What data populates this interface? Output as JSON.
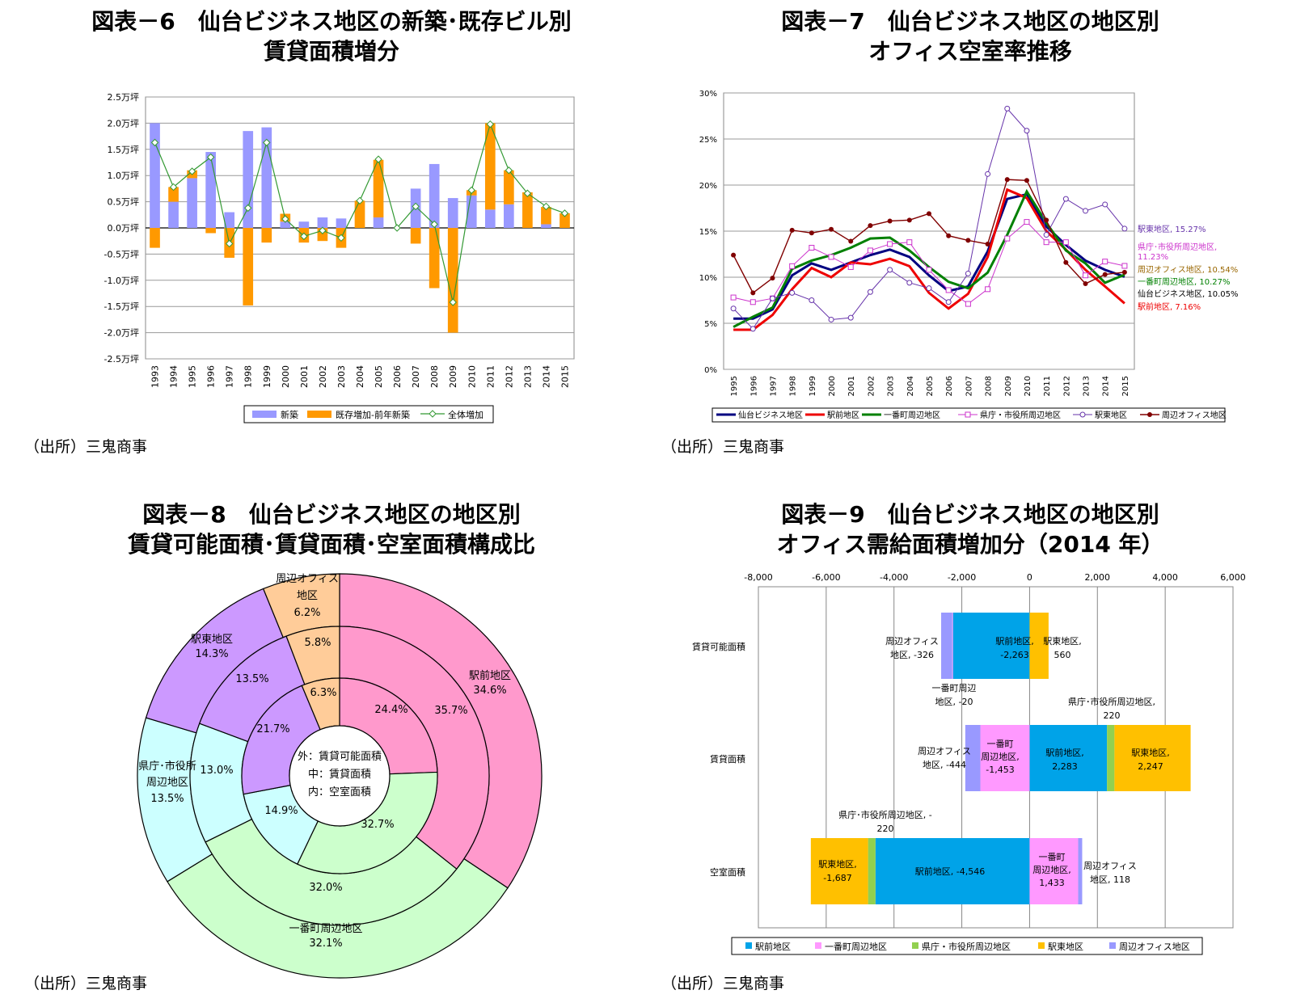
{
  "chart_data": [
    {
      "type": "bar",
      "title_line1": "図表－6　仙台ビジネス地区の新築･既存ビル別",
      "title_line2": "賃貸面積増分",
      "source": "（出所）三鬼商事",
      "categories": [
        "1993",
        "1994",
        "1995",
        "1996",
        "1997",
        "1998",
        "1999",
        "2000",
        "2001",
        "2002",
        "2003",
        "2004",
        "2005",
        "2006",
        "2007",
        "2008",
        "2009",
        "2010",
        "2011",
        "2012",
        "2013",
        "2014",
        "2015"
      ],
      "ylim": [
        -2.5,
        2.5
      ],
      "yticks": [
        "2.5万坪",
        "2.0万坪",
        "1.5万坪",
        "1.0万坪",
        "0.5万坪",
        "0.0万坪",
        "-0.5万坪",
        "-1.0万坪",
        "-1.5万坪",
        "-2.0万坪",
        "-2.5万坪"
      ],
      "ytick_values": [
        2.5,
        2.0,
        1.5,
        1.0,
        0.5,
        0.0,
        -0.5,
        -1.0,
        -1.5,
        -2.0,
        -2.5
      ],
      "series": [
        {
          "name": "新築",
          "color": "#9999ff",
          "values": [
            2.0,
            0.5,
            0.95,
            1.45,
            0.3,
            1.85,
            1.92,
            0.12,
            0.12,
            0.2,
            0.18,
            0.0,
            0.2,
            0.0,
            0.75,
            1.22,
            0.57,
            0.62,
            0.35,
            0.45,
            0.0,
            0.07,
            0.0
          ]
        },
        {
          "name": "既存増加-前年新築",
          "color": "#ff9900",
          "values": [
            -0.38,
            0.28,
            0.15,
            -0.1,
            -0.57,
            -1.48,
            -0.28,
            0.15,
            -0.28,
            -0.25,
            -0.38,
            0.52,
            1.1,
            0.0,
            -0.3,
            -1.15,
            -2.0,
            0.1,
            1.65,
            0.65,
            0.68,
            0.33,
            0.28
          ]
        },
        {
          "name": "全体増加",
          "color": "#339933",
          "values": [
            1.63,
            0.78,
            1.08,
            1.35,
            -0.3,
            0.38,
            1.63,
            0.17,
            -0.16,
            -0.05,
            -0.19,
            0.52,
            1.31,
            0.0,
            0.41,
            0.07,
            -1.42,
            0.72,
            1.98,
            1.1,
            0.66,
            0.41,
            0.28
          ]
        }
      ]
    },
    {
      "type": "line",
      "title_line1": "図表－7　仙台ビジネス地区の地区別",
      "title_line2": "オフィス空室率推移",
      "source": "（出所）三鬼商事",
      "categories": [
        "1995",
        "1996",
        "1997",
        "1998",
        "1999",
        "2000",
        "2001",
        "2002",
        "2003",
        "2004",
        "2005",
        "2006",
        "2007",
        "2008",
        "2009",
        "2010",
        "2011",
        "2012",
        "2013",
        "2014",
        "2015"
      ],
      "ylim": [
        0,
        30
      ],
      "yticks": [
        "30%",
        "25%",
        "20%",
        "15%",
        "10%",
        "5%",
        "0%"
      ],
      "ytick_values": [
        30,
        25,
        20,
        15,
        10,
        5,
        0
      ],
      "series": [
        {
          "name": "仙台ビジネス地区",
          "color": "#000080",
          "values": [
            5.5,
            5.5,
            6.5,
            10.2,
            11.5,
            10.8,
            11.6,
            12.4,
            13.0,
            12.2,
            10.2,
            8.5,
            9.0,
            12.8,
            18.5,
            19.0,
            15.5,
            13.5,
            11.8,
            10.8,
            10.05
          ]
        },
        {
          "name": "駅前地区",
          "color": "#ee0000",
          "values": [
            4.3,
            4.3,
            5.9,
            8.7,
            11.0,
            10.0,
            11.6,
            11.4,
            12.0,
            11.2,
            8.3,
            6.6,
            8.2,
            12.2,
            19.5,
            18.6,
            15.0,
            13.0,
            10.8,
            9.0,
            7.16
          ]
        },
        {
          "name": "一番町周辺地区",
          "color": "#008000",
          "values": [
            4.6,
            5.7,
            6.7,
            10.9,
            11.8,
            12.4,
            13.2,
            14.2,
            14.3,
            12.9,
            11.1,
            9.5,
            8.8,
            10.5,
            14.6,
            19.3,
            15.9,
            12.9,
            11.5,
            9.4,
            10.27
          ]
        },
        {
          "name": "県庁・市役所周辺地区",
          "color": "#cc33cc",
          "values": [
            7.8,
            7.3,
            7.7,
            11.2,
            13.2,
            12.2,
            11.1,
            12.9,
            13.6,
            13.8,
            10.8,
            8.6,
            7.1,
            8.7,
            14.2,
            16.0,
            13.8,
            13.8,
            10.2,
            11.7,
            11.23
          ]
        },
        {
          "name": "駅東地区",
          "color": "#6633aa",
          "values": [
            6.6,
            4.4,
            7.7,
            8.3,
            7.5,
            5.4,
            5.6,
            8.4,
            10.8,
            9.4,
            8.8,
            7.3,
            10.4,
            21.2,
            28.3,
            25.9,
            14.6,
            18.5,
            17.2,
            17.9,
            15.27
          ]
        },
        {
          "name": "周辺オフィス地区",
          "color": "#800000",
          "values": [
            12.4,
            8.3,
            9.9,
            15.1,
            14.8,
            15.2,
            13.9,
            15.6,
            16.1,
            16.2,
            16.9,
            14.5,
            14.0,
            13.6,
            20.6,
            20.5,
            16.2,
            11.6,
            9.3,
            10.3,
            10.54
          ]
        }
      ],
      "end_labels": [
        {
          "text": "駅東地区, 15.27%",
          "color": "#6633aa"
        },
        {
          "text": "県庁･市役所周辺地区,",
          "color": "#cc33cc"
        },
        {
          "text": "11.23%",
          "color": "#cc33cc"
        },
        {
          "text": "周辺オフィス地区, 10.54%",
          "color": "#996600"
        },
        {
          "text": "一番町周辺地区, 10.27%",
          "color": "#008000"
        },
        {
          "text": "仙台ビジネス地区, 10.05%",
          "color": "#000000"
        },
        {
          "text": "駅前地区, 7.16%",
          "color": "#ee0000"
        }
      ]
    },
    {
      "type": "pie",
      "title_line1": "図表－8　仙台ビジネス地区の地区別",
      "title_line2": "賃貸可能面積･賃貸面積･空室面積構成比",
      "source": "（出所）三鬼商事",
      "center_text": [
        "外：賃貸可能面積",
        "中：賃貸面積",
        "内：空室面積"
      ],
      "categories": [
        "駅前地区",
        "一番町周辺地区",
        "県庁・市役所周辺地区",
        "駅東地区",
        "周辺オフィス地区"
      ],
      "colors": [
        "#ff99cc",
        "#ccffcc",
        "#ccffff",
        "#cc99ff",
        "#ffcc99"
      ],
      "rings": [
        {
          "name": "外",
          "values": [
            34.6,
            32.1,
            13.5,
            14.3,
            6.2
          ]
        },
        {
          "name": "中",
          "values": [
            35.7,
            32.0,
            13.0,
            13.5,
            5.8
          ]
        },
        {
          "name": "内",
          "values": [
            24.4,
            32.7,
            14.9,
            21.7,
            6.3
          ]
        }
      ],
      "outer_labels": [
        {
          "line1": "駅前地区",
          "line2": "34.6%"
        },
        {
          "line1": "一番町周辺地区",
          "line2": "32.1%"
        },
        {
          "line1": "県庁･市役所",
          "line2": "周辺地区",
          "line3": "13.5%"
        },
        {
          "line1": "駅東地区",
          "line2": "14.3%"
        },
        {
          "line1": "周辺オフィス",
          "line2": "地区",
          "line3": "6.2%"
        }
      ],
      "middle_labels": [
        "35.7%",
        "32.0%",
        "13.0%",
        "13.5%",
        "5.8%"
      ],
      "inner_labels": [
        "24.4%",
        "32.7%",
        "14.9%",
        "21.7%",
        "6.3%"
      ]
    },
    {
      "type": "bar",
      "orientation": "horizontal",
      "title_line1": "図表－9　仙台ビジネス地区の地区別",
      "title_line2": "オフィス需給面積増加分（2014 年）",
      "source": "（出所）三鬼商事",
      "xlim": [
        -8000,
        6000
      ],
      "xticks": [
        "-8,000",
        "-6,000",
        "-4,000",
        "-2,000",
        "0",
        "2,000",
        "4,000",
        "6,000"
      ],
      "xtick_values": [
        -8000,
        -6000,
        -4000,
        -2000,
        0,
        2000,
        4000,
        6000
      ],
      "categories": [
        "賃貸可能面積",
        "賃貸面積",
        "空室面積"
      ],
      "series": [
        {
          "name": "駅前地区",
          "color": "#00a3e8",
          "values": [
            -2263,
            2283,
            -4546
          ]
        },
        {
          "name": "一番町周辺地区",
          "color": "#ff99ff",
          "values": [
            -20,
            -1453,
            1433
          ]
        },
        {
          "name": "県庁・市役所周辺地区",
          "color": "#92d050",
          "values": [
            0,
            220,
            -220
          ]
        },
        {
          "name": "駅東地区",
          "color": "#ffc000",
          "values": [
            560,
            2247,
            -1687
          ]
        },
        {
          "name": "周辺オフィス地区",
          "color": "#9999ff",
          "values": [
            -326,
            -444,
            118
          ]
        }
      ],
      "data_labels": {
        "r0_office": [
          "周辺オフィス",
          "地区, -326"
        ],
        "r0_ekimae": [
          "駅前地区,",
          "-2,263"
        ],
        "r0_ekihigashi": [
          "駅東地区,",
          "560"
        ],
        "r0_ichibancho": [
          "一番町周辺",
          "地区, -20"
        ],
        "r1_kencho": [
          "県庁･市役所周辺地区,",
          "220"
        ],
        "r1_office": [
          "周辺オフィス",
          "地区, -444"
        ],
        "r1_ichibancho": [
          "一番町",
          "周辺地区,",
          "-1,453"
        ],
        "r1_ekimae": [
          "駅前地区,",
          "2,283"
        ],
        "r1_ekihigashi": [
          "駅東地区,",
          "2,247"
        ],
        "r2_kencho": [
          "県庁･市役所周辺地区, -",
          "220"
        ],
        "r2_ekihigashi": [
          "駅東地区,",
          "-1,687"
        ],
        "r2_ekimae": [
          "駅前地区, -4,546"
        ],
        "r2_ichibancho": [
          "一番町",
          "周辺地区,",
          "1,433"
        ],
        "r2_office": [
          "周辺オフィス",
          "地区, 118"
        ]
      }
    }
  ]
}
